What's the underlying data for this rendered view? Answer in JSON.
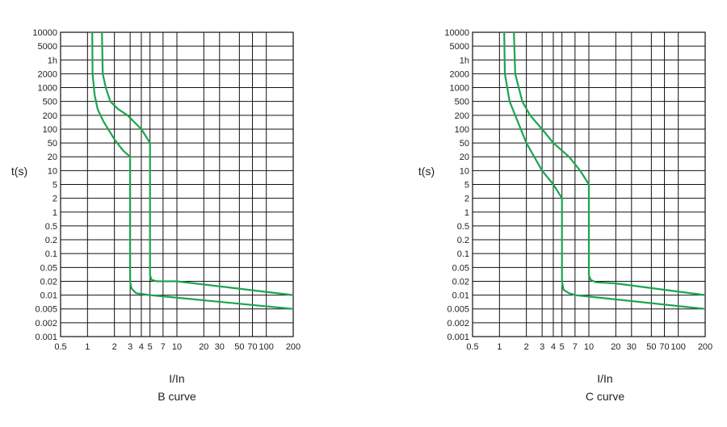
{
  "colors": {
    "curve": "#1aa64e",
    "grid": "#111111",
    "text": "#222222",
    "background": "#ffffff"
  },
  "chart_data": [
    {
      "type": "line",
      "title": "",
      "caption": "B curve",
      "xlabel": "I/In",
      "ylabel": "t(s)",
      "x_scale": "log",
      "xlim": [
        0.5,
        200
      ],
      "x_ticks": [
        0.5,
        1,
        2,
        3,
        4,
        5,
        7,
        10,
        20,
        30,
        50,
        70,
        100,
        200
      ],
      "x_tick_labels": [
        "0.5",
        "1",
        "2",
        "3",
        "4",
        "5",
        "7",
        "10",
        "20",
        "30",
        "50",
        "70",
        "100",
        "200"
      ],
      "y_tick_labels": [
        "10000",
        "5000",
        "1h",
        "2000",
        "1000",
        "500",
        "200",
        "100",
        "50",
        "20",
        "10",
        "5",
        "2",
        "1",
        "0.5",
        "0.2",
        "0.1",
        "0.05",
        "0.02",
        "0.01",
        "0.005",
        "0.002",
        "0.001"
      ],
      "grid": true,
      "series": [
        {
          "points": [
            [
              1.13,
              10000
            ],
            [
              1.14,
              2000
            ],
            [
              1.2,
              700
            ],
            [
              1.3,
              300
            ],
            [
              1.5,
              150
            ],
            [
              2,
              60
            ],
            [
              2.5,
              30
            ],
            [
              3,
              20
            ],
            [
              3,
              0.02
            ],
            [
              3.1,
              0.014
            ],
            [
              3.5,
              0.011
            ],
            [
              5,
              0.01
            ],
            [
              200,
              0.005
            ]
          ]
        },
        {
          "points": [
            [
              1.45,
              10000
            ],
            [
              1.48,
              2000
            ],
            [
              1.6,
              1000
            ],
            [
              1.8,
              500
            ],
            [
              2.2,
              300
            ],
            [
              2.8,
              200
            ],
            [
              3.5,
              130
            ],
            [
              4,
              100
            ],
            [
              5,
              50
            ],
            [
              5,
              0.03
            ],
            [
              5.2,
              0.022
            ],
            [
              6,
              0.02
            ],
            [
              10,
              0.02
            ],
            [
              200,
              0.01
            ]
          ]
        }
      ]
    },
    {
      "type": "line",
      "title": "",
      "caption": "C curve",
      "xlabel": "I/In",
      "ylabel": "t(s)",
      "x_scale": "log",
      "xlim": [
        0.5,
        200
      ],
      "x_ticks": [
        0.5,
        1,
        2,
        3,
        4,
        5,
        7,
        10,
        20,
        30,
        50,
        70,
        100,
        200
      ],
      "x_tick_labels": [
        "0.5",
        "1",
        "2",
        "3",
        "4",
        "5",
        "7",
        "10",
        "20",
        "30",
        "50",
        "70",
        "100",
        "200"
      ],
      "y_tick_labels": [
        "10000",
        "5000",
        "1h",
        "2000",
        "1000",
        "500",
        "200",
        "100",
        "50",
        "20",
        "10",
        "5",
        "2",
        "1",
        "0.5",
        "0.2",
        "0.1",
        "0.05",
        "0.02",
        "0.01",
        "0.005",
        "0.002",
        "0.001"
      ],
      "grid": true,
      "series": [
        {
          "points": [
            [
              1.13,
              10000
            ],
            [
              1.15,
              2000
            ],
            [
              1.3,
              500
            ],
            [
              1.5,
              200
            ],
            [
              2,
              50
            ],
            [
              3,
              10
            ],
            [
              4,
              5
            ],
            [
              5,
              2
            ],
            [
              5,
              0.02
            ],
            [
              5.2,
              0.013
            ],
            [
              6,
              0.011
            ],
            [
              7,
              0.01
            ],
            [
              200,
              0.005
            ]
          ]
        },
        {
          "points": [
            [
              1.45,
              10000
            ],
            [
              1.5,
              2000
            ],
            [
              1.8,
              500
            ],
            [
              2.2,
              200
            ],
            [
              3,
              100
            ],
            [
              4,
              50
            ],
            [
              6,
              20
            ],
            [
              8,
              10
            ],
            [
              10,
              5
            ],
            [
              10,
              0.03
            ],
            [
              10.5,
              0.022
            ],
            [
              12,
              0.019
            ],
            [
              20,
              0.018
            ],
            [
              200,
              0.01
            ]
          ]
        }
      ]
    }
  ]
}
